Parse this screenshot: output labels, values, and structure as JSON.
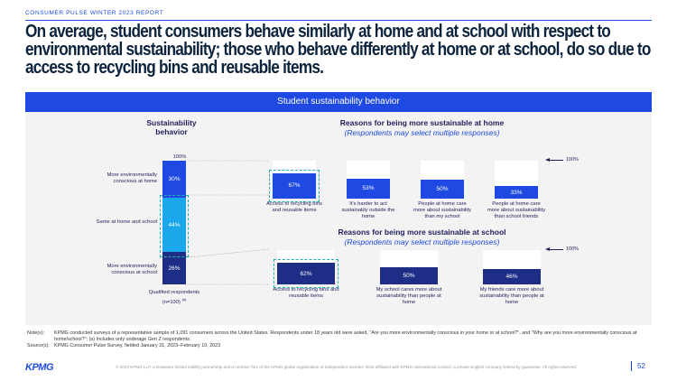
{
  "report_label": "CONSUMER PULSE WINTER 2023 REPORT",
  "headline": [
    "On average, student consumers behave similarly at home and at school with respect to",
    "environmental sustainability; those who behave differently at home or at school, do so due to",
    "access to recycling bins and reusable items."
  ],
  "banner": "Student sustainability behavior",
  "colors": {
    "brand": "#1e49e2",
    "dark_navy": "#1e2e86",
    "light_blue": "#1aa7ec",
    "teal_dash": "#21b0b0"
  },
  "chart_data": [
    {
      "type": "bar",
      "stacked": true,
      "title": "Sustainability behavior",
      "top_label": "100%",
      "categories": [
        "Qualified respondents (n=100) (a)"
      ],
      "x_label_line1": "Qualified respondents",
      "x_label_line2": "(n=100)",
      "x_label_note": "(a)",
      "series": [
        {
          "name": "More environmentally conscious at home",
          "values": [
            30
          ],
          "label": "30%"
        },
        {
          "name": "Same at home and school",
          "values": [
            44
          ],
          "label": "44%"
        },
        {
          "name": "More environmentally conscious at school",
          "values": [
            26
          ],
          "label": "26%"
        }
      ],
      "ylim": [
        0,
        100
      ]
    },
    {
      "type": "bar",
      "title": "Reasons for being more sustainable at home",
      "subtitle": "(Respondents may select multiple responses)",
      "scale_label": "100%",
      "categories": [
        "Access to recycling bins and reusable items",
        "It's harder to act sustainably outside the home",
        "People at home care more about sustainability than my school",
        "People at home care more about sustainability than school friends"
      ],
      "values": [
        67,
        53,
        50,
        33
      ],
      "value_labels": [
        "67%",
        "53%",
        "50%",
        "33%"
      ],
      "ylim": [
        0,
        100
      ],
      "highlighted": 0
    },
    {
      "type": "bar",
      "title": "Reasons for being more sustainable at school",
      "subtitle": "(Respondents may select multiple responses)",
      "scale_label": "100%",
      "categories": [
        "Access to recycling bins and reusable items",
        "My school cares more about sustainability than people at home",
        "My friends care more about sustainability than people at home"
      ],
      "values": [
        62,
        50,
        46
      ],
      "value_labels": [
        "62%",
        "50%",
        "46%"
      ],
      "ylim": [
        0,
        100
      ],
      "highlighted": 0
    }
  ],
  "notes": {
    "note_key": "Note(s):",
    "note_text_1": "KPMG conducted surveys of a representative sample of 1,091 consumers across the United States. Respondents under 18 years old were asked, \"Are you more environmentally conscious in your home or at school?\", and \"Why are you more environmentally conscious at",
    "note_text_2": "home/school?\"; (a) Includes only underage Gen Z respondents.",
    "source_key": "Source(s):",
    "source_text": "KPMG Consumer Pulse Survey, fielded January 31, 2023–February 10, 2023"
  },
  "footer": "© 2023 KPMG LLP, a Delaware limited liability partnership and a member firm of the KPMG global organization of independent member firms affiliated with KPMG International Limited, a private English company limited by guarantee. All rights reserved.",
  "page_number": "52",
  "logo_text": "KPMG"
}
